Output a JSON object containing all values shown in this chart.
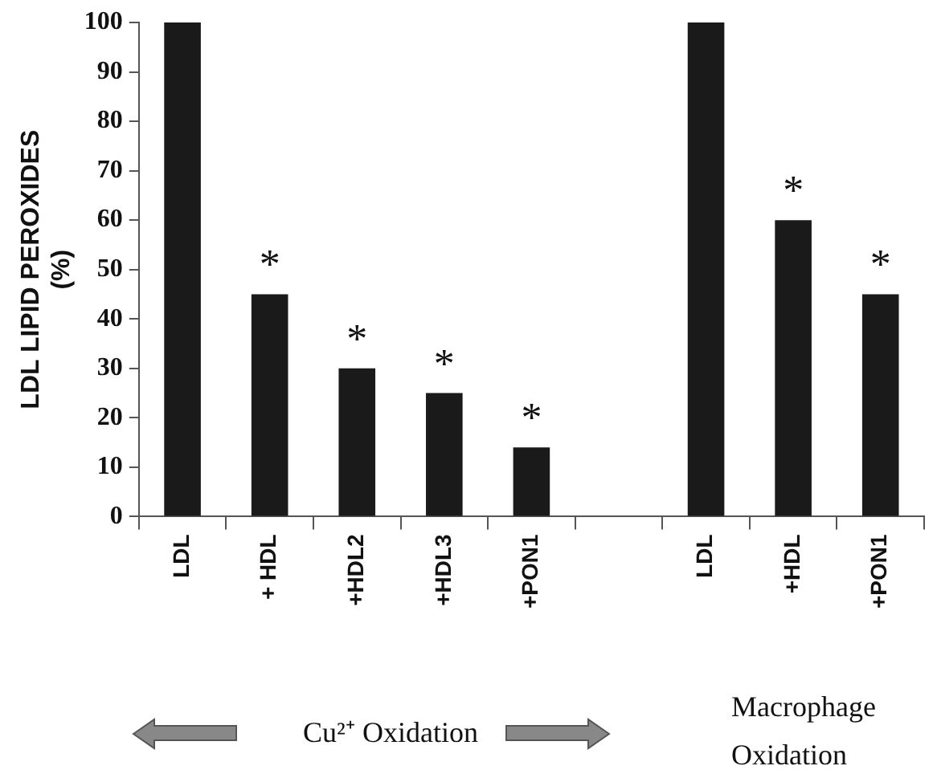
{
  "chart_data": {
    "type": "bar",
    "ylabel": "LDL LIPID PEROXIDES (%)",
    "categories": [
      "LDL",
      "+ HDL",
      "+HDL2",
      "+HDL3",
      "+PON1",
      null,
      "LDL",
      "+HDL",
      "+PON1"
    ],
    "values": [
      100,
      45,
      30,
      25,
      14,
      null,
      100,
      60,
      45
    ],
    "value_labels": [
      null,
      "*",
      "*",
      "*",
      "*",
      null,
      null,
      "*",
      "*"
    ],
    "color": "#1a1a1a",
    "ylim": [
      0,
      100
    ],
    "yticks": [
      0,
      10,
      20,
      30,
      40,
      50,
      60,
      70,
      80,
      90,
      100
    ],
    "grid": false,
    "legend": false,
    "annotations": [
      "Cu²⁺ Oxidation",
      "Macrophage Oxidation"
    ]
  }
}
